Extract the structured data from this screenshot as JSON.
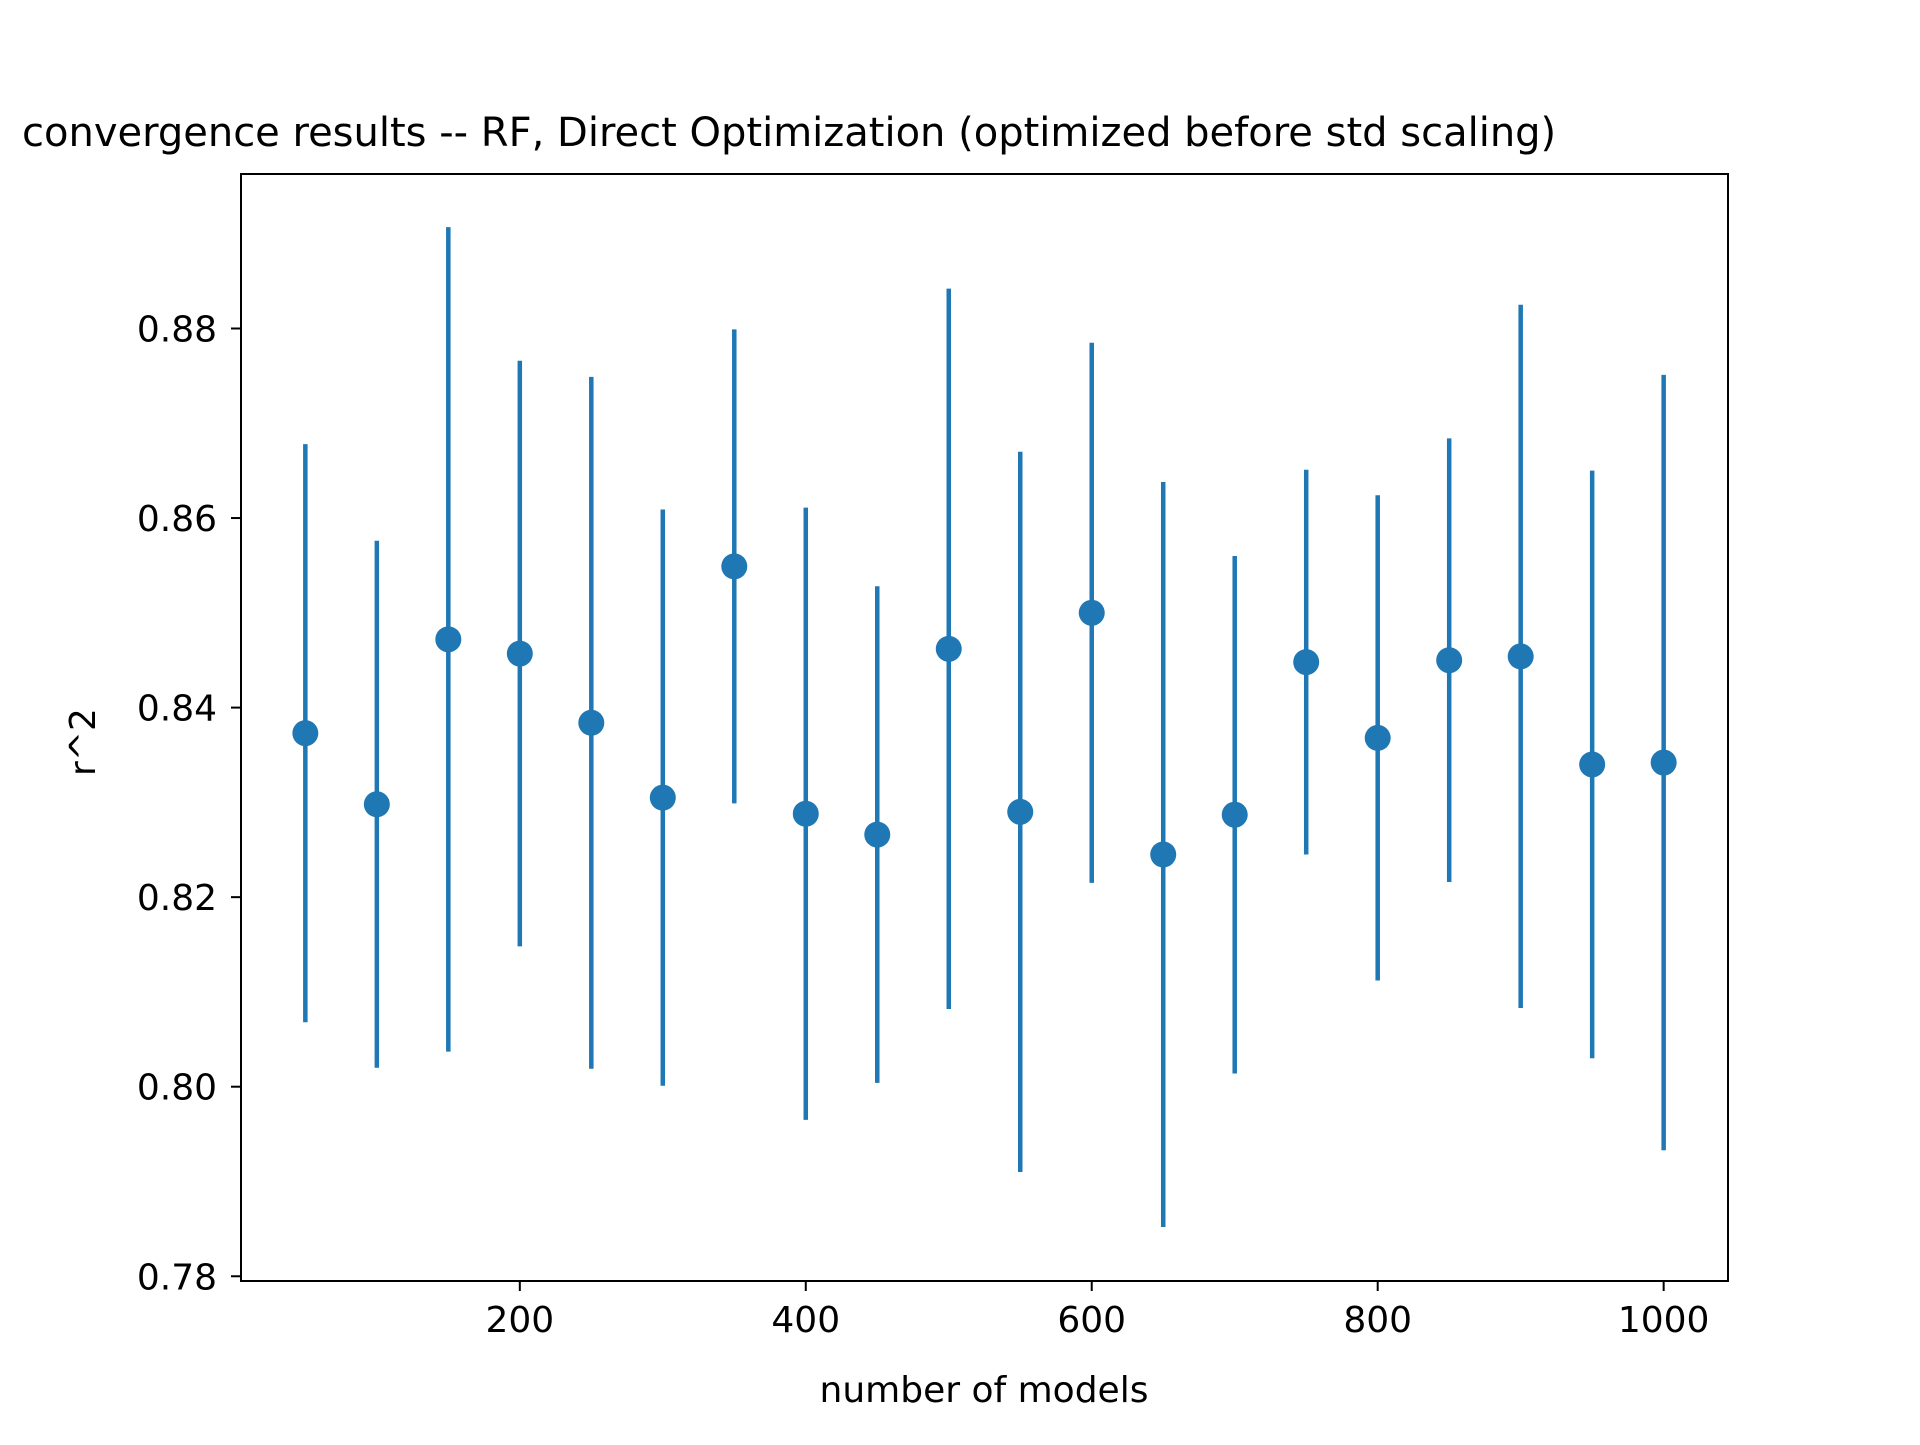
{
  "chart_data": {
    "type": "scatter",
    "title": "convergence results -- RF, Direct Optimization (optimized before std scaling)",
    "xlabel": "number of models",
    "ylabel": "r^2",
    "xlim": [
      5,
      1045
    ],
    "ylim": [
      0.7795,
      0.8963
    ],
    "x_ticks": [
      200,
      400,
      600,
      800,
      1000
    ],
    "x_tick_labels": [
      "200",
      "400",
      "600",
      "800",
      "1000"
    ],
    "y_ticks": [
      0.78,
      0.8,
      0.82,
      0.84,
      0.86,
      0.88
    ],
    "y_tick_labels": [
      "0.78",
      "0.80",
      "0.82",
      "0.84",
      "0.86",
      "0.88"
    ],
    "grid": false,
    "legend": "none",
    "color": "#1f77b4",
    "series": [
      {
        "x": [
          50,
          100,
          150,
          200,
          250,
          300,
          350,
          400,
          450,
          500,
          550,
          600,
          650,
          700,
          750,
          800,
          850,
          900,
          950,
          1000
        ],
        "y": [
          0.8373,
          0.8298,
          0.8472,
          0.8457,
          0.8384,
          0.8305,
          0.8549,
          0.8288,
          0.8266,
          0.8462,
          0.829,
          0.85,
          0.8245,
          0.8287,
          0.8448,
          0.8368,
          0.845,
          0.8454,
          0.834,
          0.8342
        ],
        "yerr": [
          0.0305,
          0.0278,
          0.0435,
          0.0309,
          0.0365,
          0.0304,
          0.025,
          0.0323,
          0.0262,
          0.038,
          0.038,
          0.0285,
          0.0393,
          0.0273,
          0.0203,
          0.0256,
          0.0234,
          0.0371,
          0.031,
          0.0409
        ]
      }
    ]
  }
}
